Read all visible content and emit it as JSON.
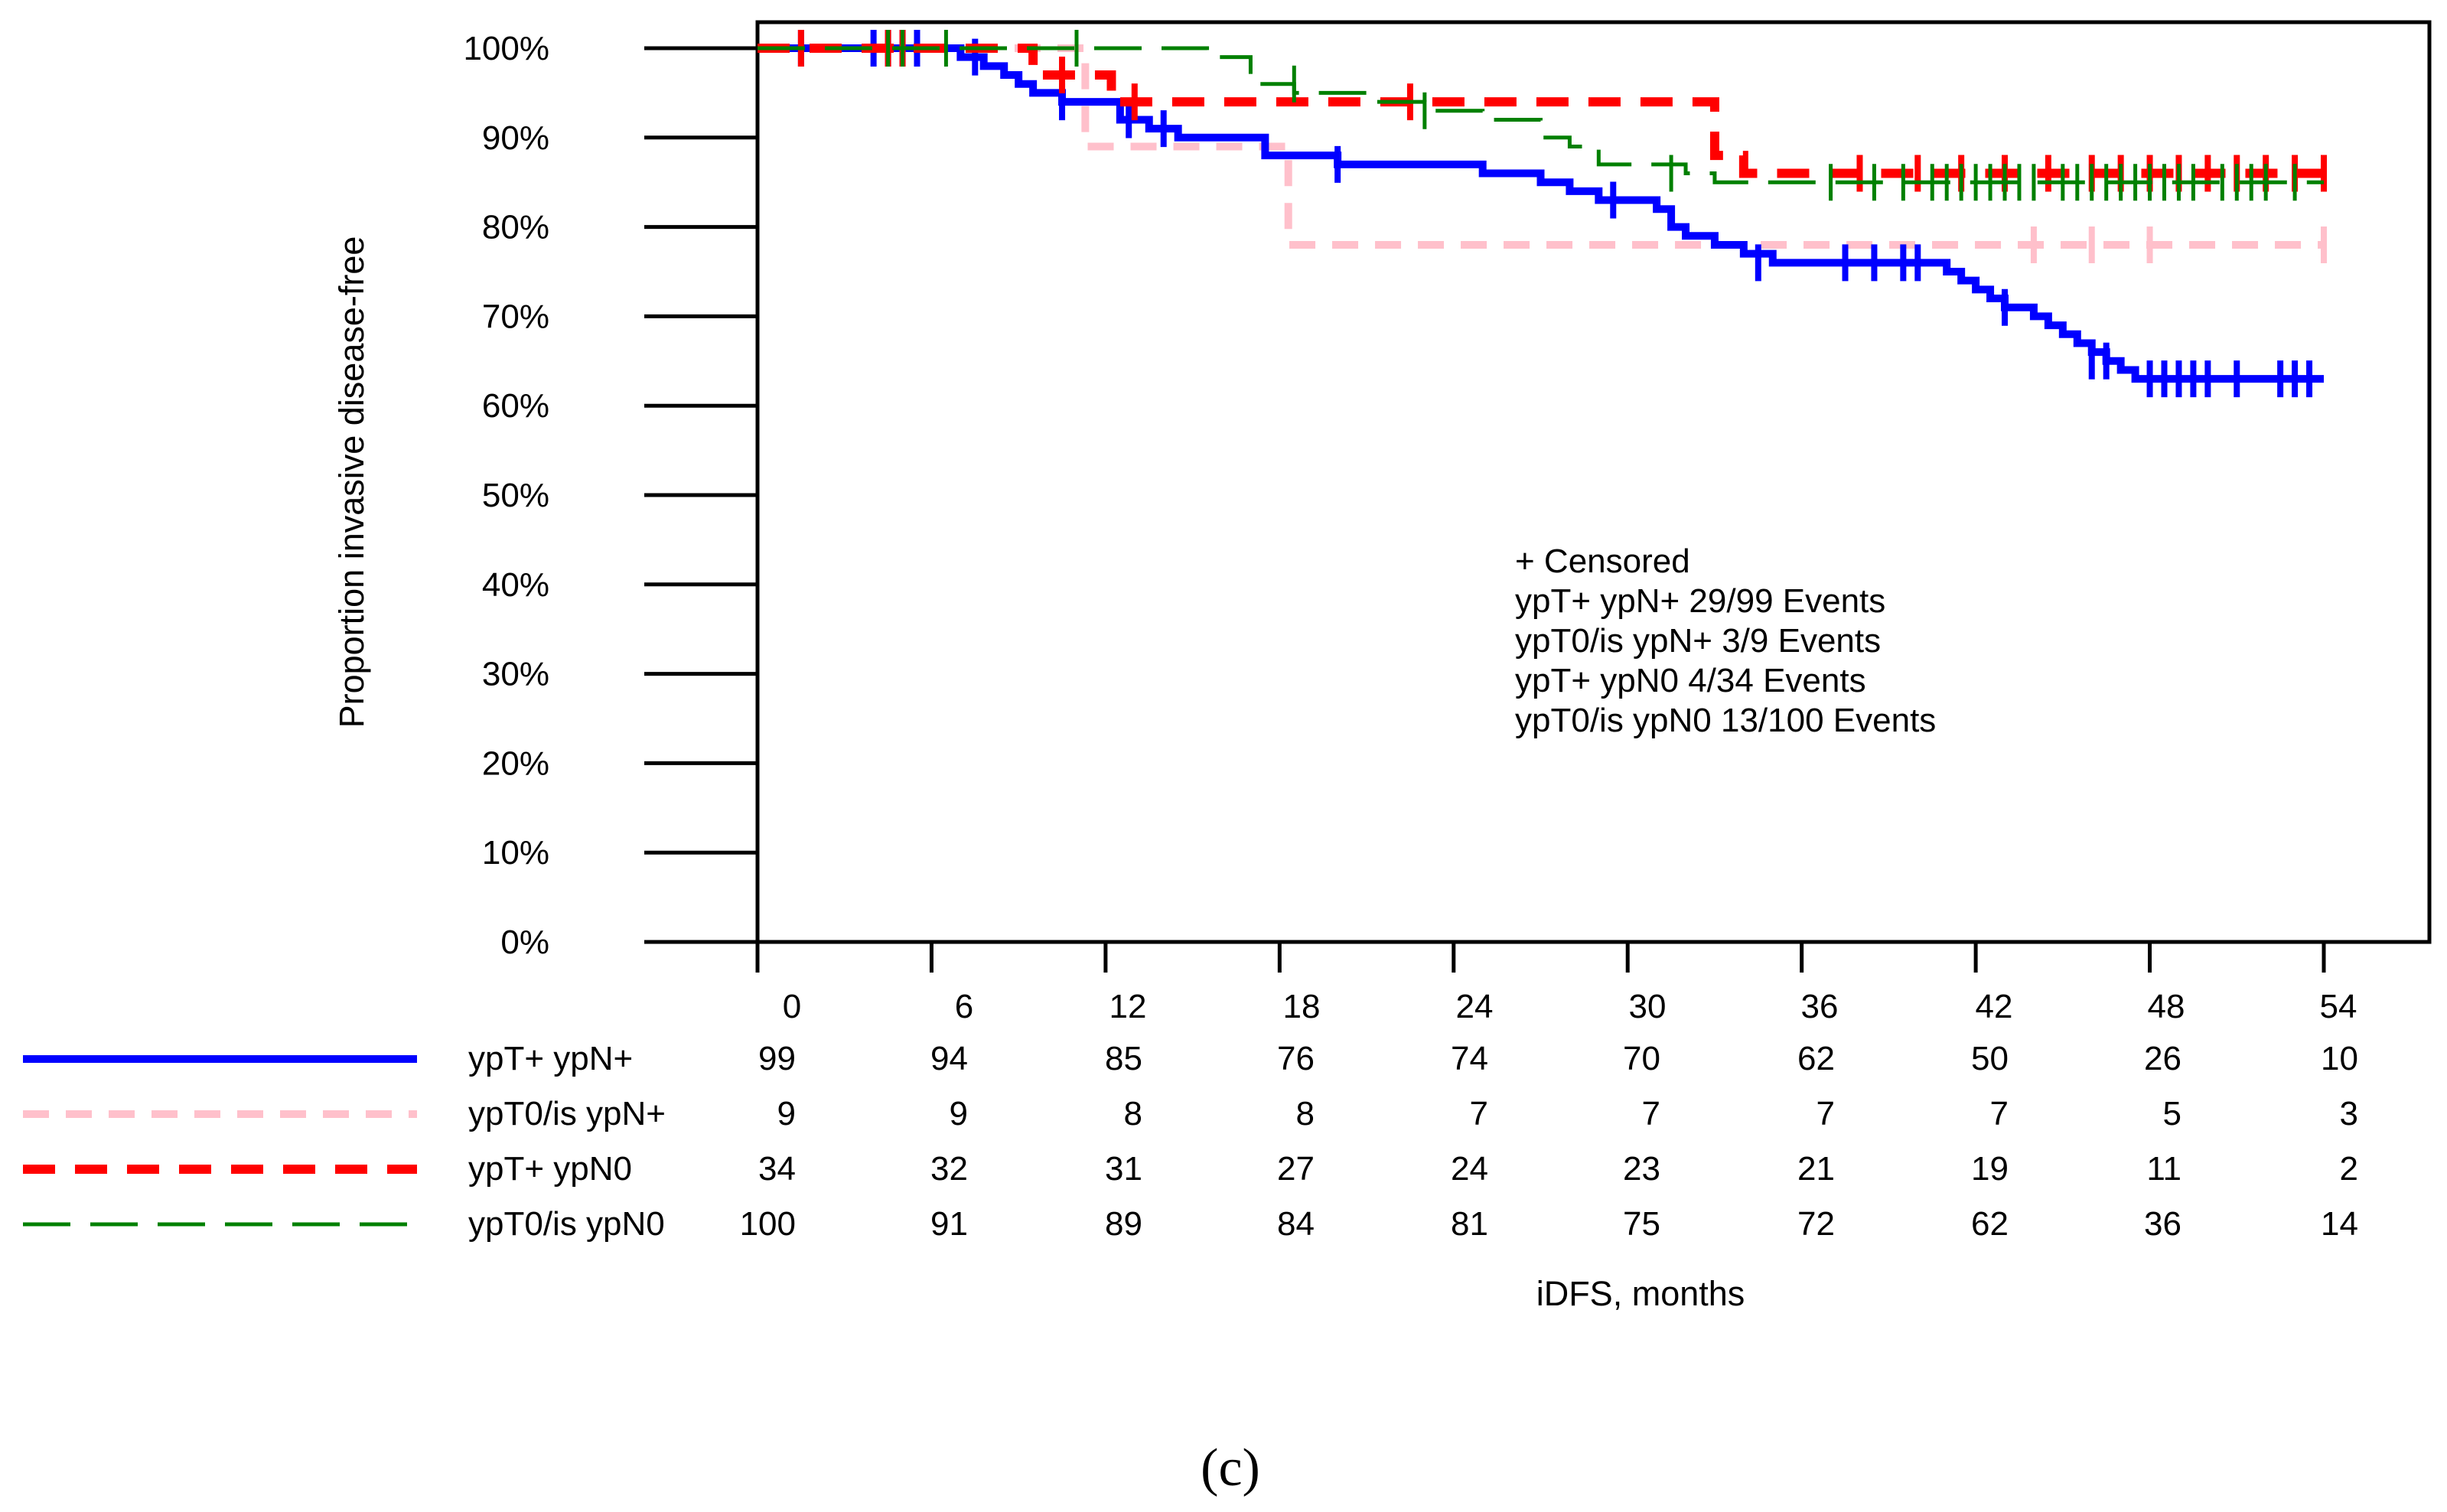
{
  "chart_data": {
    "type": "line",
    "subtype": "kaplan-meier",
    "ylabel": "Proportion invasive disease-free",
    "xlabel": "iDFS, months",
    "caption": "(c)",
    "x_ticks": [
      "0",
      "6",
      "12",
      "18",
      "24",
      "30",
      "36",
      "42",
      "48",
      "54"
    ],
    "y_ticks": [
      "0%",
      "10%",
      "20%",
      "30%",
      "40%",
      "50%",
      "60%",
      "70%",
      "80%",
      "90%",
      "100%"
    ],
    "xlim": [
      0,
      54
    ],
    "ylim": [
      0,
      100
    ],
    "legend_lines": [
      "+ Censored",
      "ypT+ ypN+  29/99 Events",
      "ypT0/is ypN+  3/9 Events",
      "ypT+ ypN0  4/34 Events",
      "ypT0/is ypN0  13/100 Events"
    ],
    "series": [
      {
        "name": "ypT+ ypN+",
        "color": "#0000ff",
        "style": "solid",
        "steps": [
          [
            0,
            100
          ],
          [
            7,
            99
          ],
          [
            7.8,
            98
          ],
          [
            8.5,
            97
          ],
          [
            9,
            96
          ],
          [
            9.5,
            95
          ],
          [
            10.5,
            94
          ],
          [
            12.5,
            92
          ],
          [
            13.5,
            91
          ],
          [
            14.5,
            90
          ],
          [
            17.5,
            88
          ],
          [
            20,
            87
          ],
          [
            25,
            86
          ],
          [
            27,
            85
          ],
          [
            28,
            84
          ],
          [
            29,
            83
          ],
          [
            31,
            82
          ],
          [
            31.5,
            80
          ],
          [
            32,
            79
          ],
          [
            33,
            78
          ],
          [
            34,
            77
          ],
          [
            35,
            76
          ],
          [
            41,
            75
          ],
          [
            41.5,
            74
          ],
          [
            42,
            73
          ],
          [
            42.5,
            72
          ],
          [
            43,
            71
          ],
          [
            44,
            70
          ],
          [
            44.5,
            69
          ],
          [
            45,
            68
          ],
          [
            45.5,
            67
          ],
          [
            46,
            66
          ],
          [
            46.5,
            65
          ],
          [
            47,
            64
          ],
          [
            47.5,
            63
          ],
          [
            54,
            63
          ]
        ],
        "censored": [
          [
            1.5,
            100
          ],
          [
            4,
            100
          ],
          [
            4.5,
            100
          ],
          [
            5,
            100
          ],
          [
            5.5,
            100
          ],
          [
            7.5,
            99
          ],
          [
            10.5,
            94
          ],
          [
            12.8,
            92
          ],
          [
            14,
            91
          ],
          [
            20,
            87
          ],
          [
            29.5,
            83
          ],
          [
            34.5,
            76
          ],
          [
            37.5,
            76
          ],
          [
            38.5,
            76
          ],
          [
            39.5,
            76
          ],
          [
            40,
            76
          ],
          [
            43,
            71
          ],
          [
            46,
            65
          ],
          [
            46.5,
            65
          ],
          [
            48,
            63
          ],
          [
            48.5,
            63
          ],
          [
            49,
            63
          ],
          [
            49.5,
            63
          ],
          [
            50,
            63
          ],
          [
            51,
            63
          ],
          [
            52.5,
            63
          ],
          [
            53,
            63
          ],
          [
            53.5,
            63
          ]
        ],
        "at_risk": [
          "99",
          "94",
          "85",
          "76",
          "74",
          "70",
          "62",
          "50",
          "26",
          "10"
        ]
      },
      {
        "name": "ypT0/is ypN+",
        "color": "#ffc0cb",
        "style": "dashed",
        "steps": [
          [
            0,
            100
          ],
          [
            11.3,
            89
          ],
          [
            18.3,
            78
          ],
          [
            54,
            78
          ]
        ],
        "censored": [
          [
            4.5,
            100
          ],
          [
            5.5,
            100
          ],
          [
            44,
            78
          ],
          [
            46,
            78
          ],
          [
            48,
            78
          ],
          [
            54,
            78
          ]
        ],
        "at_risk": [
          "9",
          "9",
          "8",
          "8",
          "7",
          "7",
          "7",
          "7",
          "5",
          "3"
        ]
      },
      {
        "name": "ypT+ ypN0",
        "color": "#ff0000",
        "style": "dashed",
        "steps": [
          [
            0,
            100
          ],
          [
            9.5,
            97
          ],
          [
            12.2,
            94
          ],
          [
            33,
            88
          ],
          [
            34,
            86
          ],
          [
            54,
            86
          ]
        ],
        "censored": [
          [
            1.5,
            100
          ],
          [
            4.5,
            100
          ],
          [
            5,
            100
          ],
          [
            10.5,
            97
          ],
          [
            13,
            94
          ],
          [
            22.5,
            94
          ],
          [
            38,
            86
          ],
          [
            40,
            86
          ],
          [
            41.5,
            86
          ],
          [
            43,
            86
          ],
          [
            44.5,
            86
          ],
          [
            46,
            86
          ],
          [
            47,
            86
          ],
          [
            48,
            86
          ],
          [
            49,
            86
          ],
          [
            50,
            86
          ],
          [
            51,
            86
          ],
          [
            52,
            86
          ],
          [
            53,
            86
          ],
          [
            54,
            86
          ]
        ],
        "at_risk": [
          "34",
          "32",
          "31",
          "27",
          "24",
          "23",
          "21",
          "19",
          "11",
          "2"
        ]
      },
      {
        "name": "ypT0/is ypN0",
        "color": "#008000",
        "style": "dashed",
        "steps": [
          [
            0,
            100
          ],
          [
            15.5,
            99
          ],
          [
            17,
            96
          ],
          [
            18.5,
            95
          ],
          [
            21,
            94
          ],
          [
            23,
            93
          ],
          [
            25,
            92
          ],
          [
            27,
            90
          ],
          [
            28,
            89
          ],
          [
            29,
            87
          ],
          [
            32,
            86
          ],
          [
            33,
            85
          ],
          [
            54,
            85
          ]
        ],
        "censored": [
          [
            4.5,
            100
          ],
          [
            5,
            100
          ],
          [
            6.5,
            100
          ],
          [
            11,
            100
          ],
          [
            18.5,
            96
          ],
          [
            23,
            93
          ],
          [
            31.5,
            86
          ],
          [
            37,
            85
          ],
          [
            38.5,
            85
          ],
          [
            39.5,
            85
          ],
          [
            40.5,
            85
          ],
          [
            41,
            85
          ],
          [
            41.5,
            85
          ],
          [
            42,
            85
          ],
          [
            42.5,
            85
          ],
          [
            43,
            85
          ],
          [
            43.5,
            85
          ],
          [
            44,
            85
          ],
          [
            45,
            85
          ],
          [
            45.5,
            85
          ],
          [
            46,
            85
          ],
          [
            46.5,
            85
          ],
          [
            47,
            85
          ],
          [
            47.5,
            85
          ],
          [
            48,
            85
          ],
          [
            48.5,
            85
          ],
          [
            49,
            85
          ],
          [
            49.5,
            85
          ],
          [
            50.5,
            85
          ],
          [
            51,
            85
          ],
          [
            51.5,
            85
          ],
          [
            52,
            85
          ],
          [
            53,
            85
          ]
        ],
        "at_risk": [
          "100",
          "91",
          "89",
          "84",
          "81",
          "75",
          "72",
          "62",
          "36",
          "14"
        ]
      }
    ]
  }
}
